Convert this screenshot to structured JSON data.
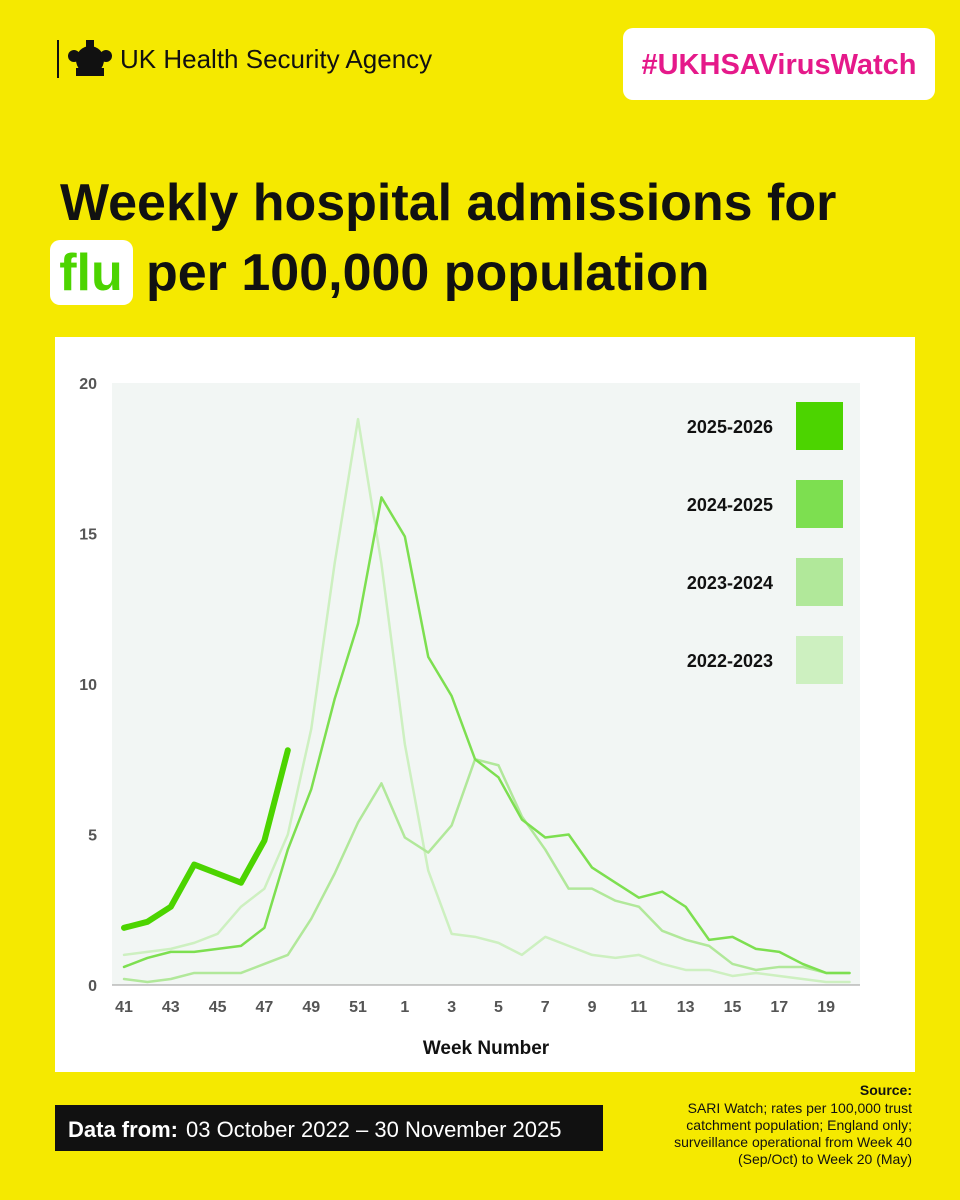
{
  "header": {
    "agency": "UK Health Security Agency",
    "hashtag": "#UKHSAVirusWatch",
    "title_line1": "Weekly hospital admissions for",
    "title_highlight": "flu",
    "title_line2": "per 100,000 population"
  },
  "chart_data": {
    "type": "line",
    "x_label": "Week Number",
    "categories": [
      "41",
      null,
      "43",
      null,
      "45",
      null,
      "47",
      null,
      "49",
      null,
      "51",
      null,
      "1",
      null,
      "3",
      null,
      "5",
      null,
      "7",
      null,
      "9",
      null,
      "11",
      null,
      "13",
      null,
      "15",
      null,
      "17",
      null,
      "19",
      null
    ],
    "ylim": [
      0,
      20
    ],
    "yticks": [
      0,
      5,
      10,
      15,
      20
    ],
    "grid": false,
    "legend": "right",
    "series": [
      {
        "name": "2025-2026",
        "color": "#4cd400",
        "values": [
          1.9,
          2.1,
          2.6,
          4.0,
          3.7,
          3.4,
          4.8,
          7.8,
          null,
          null,
          null,
          null,
          null,
          null,
          null,
          null,
          null,
          null,
          null,
          null,
          null,
          null,
          null,
          null,
          null,
          null,
          null,
          null,
          null,
          null,
          null,
          null
        ]
      },
      {
        "name": "2024-2025",
        "color": "#7ddf50",
        "values": [
          0.6,
          0.9,
          1.1,
          1.1,
          1.2,
          1.3,
          1.9,
          4.5,
          6.5,
          9.5,
          12.0,
          16.2,
          14.9,
          10.9,
          9.6,
          7.5,
          6.9,
          5.5,
          4.9,
          5.0,
          3.9,
          3.4,
          2.9,
          3.1,
          2.6,
          1.5,
          1.6,
          1.2,
          1.1,
          0.7,
          0.4,
          0.4
        ]
      },
      {
        "name": "2023-2024",
        "color": "#b1e89a",
        "values": [
          0.2,
          0.1,
          0.2,
          0.4,
          0.4,
          0.4,
          0.7,
          1.0,
          2.2,
          3.7,
          5.4,
          6.7,
          4.9,
          4.4,
          5.3,
          7.5,
          7.3,
          5.6,
          4.5,
          3.2,
          3.2,
          2.8,
          2.6,
          1.8,
          1.5,
          1.3,
          0.7,
          0.5,
          0.6,
          0.6,
          0.4,
          0.4
        ]
      },
      {
        "name": "2022-2023",
        "color": "#cdf0c0",
        "values": [
          1.0,
          1.1,
          1.2,
          1.4,
          1.7,
          2.6,
          3.2,
          5.0,
          8.5,
          14.0,
          18.8,
          14.0,
          8.0,
          3.8,
          1.7,
          1.6,
          1.4,
          1.0,
          1.6,
          1.3,
          1.0,
          0.9,
          1.0,
          0.7,
          0.5,
          0.5,
          0.3,
          0.4,
          0.3,
          0.2,
          0.1,
          0.1
        ]
      }
    ]
  },
  "footer": {
    "date_label": "Data from:",
    "date_range": "03 October 2022 – 30 November 2025",
    "source_title": "Source:",
    "source_lines": [
      "SARI Watch; rates per 100,000 trust",
      "catchment population; England only;",
      "surveillance operational from Week 40",
      "(Sep/Oct) to Week 20 (May)"
    ]
  }
}
